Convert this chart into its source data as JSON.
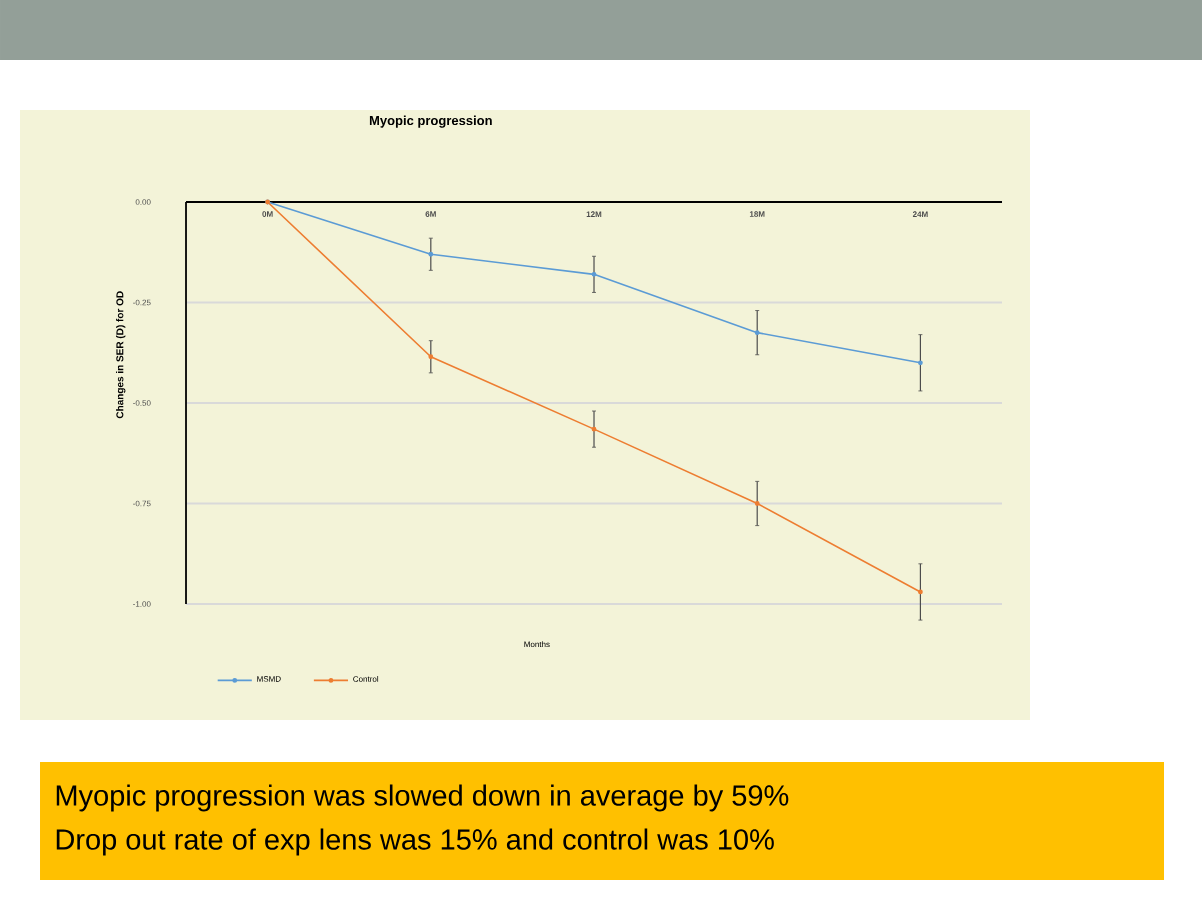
{
  "chart_data": {
    "type": "line",
    "title": "Myopic progression",
    "xlabel": "Months",
    "ylabel": "Changes in SER (D) for OD",
    "categories": [
      "0M",
      "6M",
      "12M",
      "18M",
      "24M"
    ],
    "series": [
      {
        "name": "MSMD",
        "color": "#5b9bd5",
        "values": [
          0,
          -0.13,
          -0.18,
          -0.325,
          -0.4
        ],
        "errors": [
          null,
          0.04,
          0.045,
          0.055,
          0.07
        ]
      },
      {
        "name": "Control",
        "color": "#ed7d31",
        "values": [
          0,
          -0.385,
          -0.565,
          -0.75,
          -0.97
        ],
        "errors": [
          null,
          0.04,
          0.045,
          0.055,
          0.07
        ]
      }
    ],
    "ylim": [
      -1,
      0
    ],
    "yticks": [
      {
        "value": -1,
        "label": "-1.00"
      },
      {
        "value": -0.75,
        "label": "-0.75"
      },
      {
        "value": -0.5,
        "label": "-0.50"
      },
      {
        "value": -0.25,
        "label": "-0.25"
      },
      {
        "value": 0,
        "label": "0.00"
      }
    ],
    "grid": "y",
    "legend": "bottom left",
    "marker": "circle",
    "line_style": "solid",
    "annotations": [
      "Myopic progression was slowed down in average by 59%",
      "Drop out rate of exp lens was 15% and control was 10%"
    ]
  }
}
